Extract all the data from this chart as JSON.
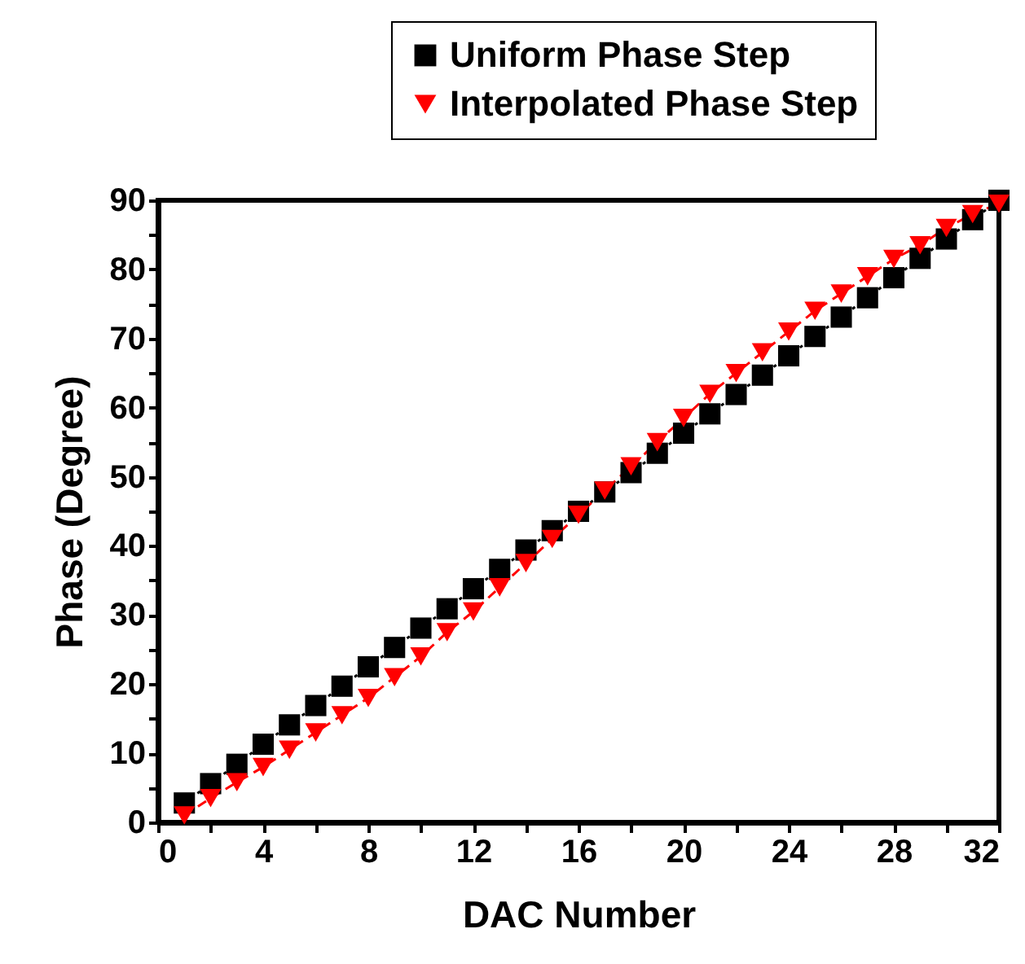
{
  "chart_data": {
    "type": "line",
    "xlabel": "DAC Number",
    "ylabel": "Phase (Degree)",
    "x": [
      1,
      2,
      3,
      4,
      5,
      6,
      7,
      8,
      9,
      10,
      11,
      12,
      13,
      14,
      15,
      16,
      17,
      18,
      19,
      20,
      21,
      22,
      23,
      24,
      25,
      26,
      27,
      28,
      29,
      30,
      31,
      32
    ],
    "series": [
      {
        "name": "Uniform Phase Step",
        "color": "#000000",
        "marker": "square",
        "line_style": "dotted",
        "values": [
          2.8,
          5.6,
          8.4,
          11.3,
          14.1,
          16.9,
          19.7,
          22.5,
          25.3,
          28.1,
          30.9,
          33.8,
          36.6,
          39.4,
          42.2,
          45.0,
          47.8,
          50.6,
          53.4,
          56.3,
          59.1,
          61.9,
          64.7,
          67.5,
          70.3,
          73.1,
          75.9,
          78.8,
          81.6,
          84.4,
          87.2,
          90.0
        ]
      },
      {
        "name": "Interpolated Phase Step",
        "color": "#ff0000",
        "marker": "triangle",
        "line_style": "dashed",
        "values": [
          1.0,
          3.5,
          5.8,
          8.0,
          10.5,
          13.0,
          15.5,
          18.0,
          21.0,
          24.0,
          27.5,
          30.5,
          34.0,
          37.5,
          41.0,
          44.5,
          48.0,
          51.5,
          55.0,
          58.5,
          62.0,
          65.0,
          68.0,
          71.0,
          74.0,
          76.5,
          79.0,
          81.5,
          83.5,
          86.0,
          88.0,
          89.5
        ]
      }
    ],
    "xlim": [
      0,
      32
    ],
    "xticks": [
      0,
      {
        "value": 2,
        "label": null
      },
      4,
      {
        "value": 6,
        "label": null
      },
      8,
      {
        "value": 10,
        "label": null
      },
      12,
      {
        "value": 14,
        "label": null
      },
      16,
      {
        "value": 18,
        "label": null
      },
      20,
      {
        "value": 22,
        "label": null
      },
      24,
      {
        "value": 26,
        "label": null
      },
      28,
      {
        "value": 30,
        "label": null
      },
      32
    ],
    "ylim": [
      0,
      90
    ],
    "yticks": [
      0,
      {
        "value": 5,
        "label": null
      },
      10,
      {
        "value": 15,
        "label": null
      },
      20,
      {
        "value": 25,
        "label": null
      },
      30,
      {
        "value": 35,
        "label": null
      },
      40,
      {
        "value": 45,
        "label": null
      },
      50,
      {
        "value": 55,
        "label": null
      },
      60,
      {
        "value": 65,
        "label": null
      },
      70,
      {
        "value": 75,
        "label": null
      },
      80,
      {
        "value": 85,
        "label": null
      },
      90
    ],
    "grid": false,
    "legend": "top right"
  }
}
